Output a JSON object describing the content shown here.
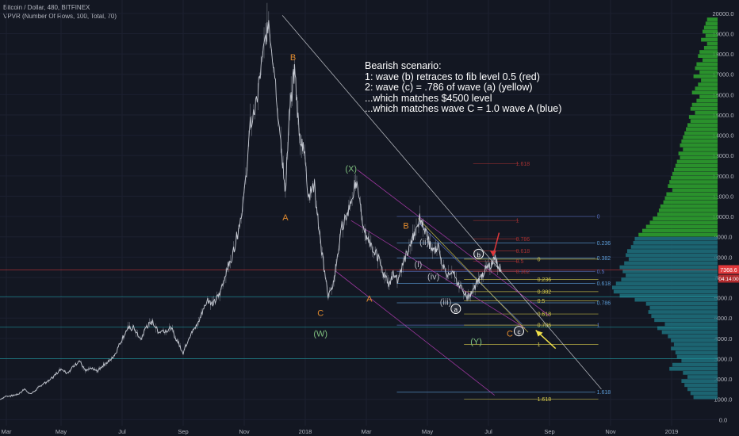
{
  "chart_data": {
    "type": "candlestick",
    "title": "Bitcoin / Dollar, 480, BITFINEX",
    "indicator": "VPVR (Number Of Rows, 100, Total, 70)",
    "ylim": [
      -300,
      20500
    ],
    "y_ticks": [
      "0.0",
      "1000.0",
      "2000.0",
      "3000.0",
      "4000.0",
      "5000.0",
      "6000.0",
      "7000.0",
      "8000.0",
      "9000.0",
      "10000.0",
      "11000.0",
      "12000.0",
      "13000.0",
      "14000.0",
      "15000.0",
      "16000.0",
      "17000.0",
      "18000.0",
      "19000.0",
      "20000.0"
    ],
    "x_ticks": [
      "Mar",
      "May",
      "Jul",
      "Sep",
      "Nov",
      "2018",
      "Mar",
      "May",
      "Jul",
      "Sep",
      "Nov",
      "2019"
    ],
    "price_label": "7368.6",
    "time_label": "04:14:00",
    "note_lines": [
      "Bearish scenario:",
      "1: wave (b) retraces to fib level 0.5 (red)",
      "2: wave (c) = .786 of wave (a) (yellow)",
      "...which matches $4500 level",
      "...which matches wave C = 1.0 wave A (blue)"
    ],
    "price_path": [
      [
        0,
        1000
      ],
      [
        0.2,
        1150
      ],
      [
        0.4,
        1180
      ],
      [
        0.6,
        1250
      ],
      [
        0.8,
        1500
      ],
      [
        1.0,
        1250
      ],
      [
        1.2,
        1500
      ],
      [
        1.4,
        1750
      ],
      [
        1.6,
        1900
      ],
      [
        1.8,
        2200
      ],
      [
        2.0,
        2500
      ],
      [
        2.2,
        2300
      ],
      [
        2.4,
        2600
      ],
      [
        2.6,
        2900
      ],
      [
        2.8,
        2400
      ],
      [
        3.0,
        2500
      ],
      [
        3.2,
        2400
      ],
      [
        3.4,
        2700
      ],
      [
        3.6,
        2900
      ],
      [
        3.8,
        3300
      ],
      [
        4.0,
        4000
      ],
      [
        4.2,
        4500
      ],
      [
        4.4,
        4500
      ],
      [
        4.6,
        3900
      ],
      [
        4.8,
        4600
      ],
      [
        5.0,
        4800
      ],
      [
        5.2,
        4300
      ],
      [
        5.4,
        4400
      ],
      [
        5.6,
        4500
      ],
      [
        5.8,
        3900
      ],
      [
        6.0,
        3300
      ],
      [
        6.2,
        4100
      ],
      [
        6.4,
        4500
      ],
      [
        6.6,
        5200
      ],
      [
        6.8,
        5900
      ],
      [
        7.0,
        5700
      ],
      [
        7.2,
        6200
      ],
      [
        7.4,
        7300
      ],
      [
        7.6,
        8000
      ],
      [
        7.8,
        9300
      ],
      [
        8.0,
        11000
      ],
      [
        8.2,
        14500
      ],
      [
        8.4,
        15500
      ],
      [
        8.6,
        17800
      ],
      [
        8.8,
        19700
      ],
      [
        9.0,
        17000
      ],
      [
        9.2,
        13500
      ],
      [
        9.35,
        11200
      ],
      [
        9.5,
        15500
      ],
      [
        9.65,
        17200
      ],
      [
        9.8,
        14000
      ],
      [
        9.95,
        13500
      ],
      [
        10.1,
        11000
      ],
      [
        10.3,
        11500
      ],
      [
        10.45,
        9300
      ],
      [
        10.6,
        7600
      ],
      [
        10.75,
        6100
      ],
      [
        10.9,
        6500
      ],
      [
        11.05,
        8000
      ],
      [
        11.2,
        9500
      ],
      [
        11.35,
        10000
      ],
      [
        11.5,
        10800
      ],
      [
        11.65,
        11700
      ],
      [
        11.8,
        10500
      ],
      [
        11.95,
        9200
      ],
      [
        12.1,
        8800
      ],
      [
        12.3,
        8200
      ],
      [
        12.45,
        7800
      ],
      [
        12.6,
        7000
      ],
      [
        12.75,
        6700
      ],
      [
        12.9,
        7200
      ],
      [
        13.05,
        6800
      ],
      [
        13.25,
        7900
      ],
      [
        13.45,
        8600
      ],
      [
        13.6,
        9300
      ],
      [
        13.75,
        9900
      ],
      [
        13.9,
        9500
      ],
      [
        14.05,
        8700
      ],
      [
        14.2,
        8300
      ],
      [
        14.35,
        8500
      ],
      [
        14.5,
        7600
      ],
      [
        14.65,
        7200
      ],
      [
        14.8,
        7400
      ],
      [
        15.0,
        6600
      ],
      [
        15.15,
        6500
      ],
      [
        15.3,
        6000
      ],
      [
        15.45,
        6200
      ],
      [
        15.6,
        6700
      ],
      [
        15.75,
        7000
      ],
      [
        15.9,
        7400
      ],
      [
        16.05,
        7500
      ],
      [
        16.2,
        8100
      ],
      [
        16.3,
        7600
      ],
      [
        16.42,
        7368
      ]
    ],
    "levels": [
      {
        "name": "blue 0",
        "value": 10000,
        "label": "0",
        "color": "#5b73c4"
      },
      {
        "name": "blue 0.236",
        "value": 8700,
        "label": "0.236",
        "color": "#5b9bd5"
      },
      {
        "name": "blue 0.382",
        "value": 7950,
        "label": "0.382",
        "color": "#5b9bd5"
      },
      {
        "name": "blue 0.5",
        "value": 7300,
        "label": "0.5",
        "color": "#5b73c4"
      },
      {
        "name": "blue 0.618",
        "value": 6700,
        "label": "0.618",
        "color": "#5b9bd5"
      },
      {
        "name": "blue 0.786",
        "value": 5750,
        "label": "0.786",
        "color": "#5b9bd5"
      },
      {
        "name": "blue 1",
        "value": 4650,
        "label": "1",
        "color": "#5b73c4"
      },
      {
        "name": "blue 1.618",
        "value": 1350,
        "label": "1.618",
        "color": "#5b9bd5"
      },
      {
        "name": "red 1.618",
        "value": 12600,
        "label": "1.618",
        "color": "#a83232"
      },
      {
        "name": "red 1",
        "value": 9800,
        "label": "1",
        "color": "#a83232"
      },
      {
        "name": "red 0.786",
        "value": 8900,
        "label": "0.786",
        "color": "#a83232"
      },
      {
        "name": "red 0.618",
        "value": 8300,
        "label": "0.618",
        "color": "#a83232"
      },
      {
        "name": "red 0.5",
        "value": 7800,
        "label": "0.5",
        "color": "#a83232"
      },
      {
        "name": "red 0.382",
        "value": 7300,
        "label": "0.382",
        "color": "#a83232"
      },
      {
        "name": "yellow 0",
        "value": 7900,
        "label": "0",
        "color": "#d4c84a"
      },
      {
        "name": "yellow 0.236",
        "value": 6900,
        "label": "0.236",
        "color": "#d4c84a"
      },
      {
        "name": "yellow 0.382",
        "value": 6300,
        "label": "0.382",
        "color": "#d4c84a"
      },
      {
        "name": "yellow 0.5",
        "value": 5850,
        "label": "0.5",
        "color": "#d4c84a"
      },
      {
        "name": "yellow 0.618",
        "value": 5200,
        "label": "0.618",
        "color": "#d4c84a"
      },
      {
        "name": "yellow 0.786",
        "value": 4650,
        "label": "0.786",
        "color": "#d4c84a"
      },
      {
        "name": "yellow 1",
        "value": 3700,
        "label": "1",
        "color": "#d4c84a"
      },
      {
        "name": "yellow 1.618",
        "value": 1000,
        "label": "1.618",
        "color": "#d4c84a"
      }
    ],
    "wave_labels": [
      {
        "text": "B",
        "x": 9.6,
        "y": 17700,
        "color": "#e08a2e"
      },
      {
        "text": "A",
        "x": 9.35,
        "y": 9800,
        "color": "#e08a2e"
      },
      {
        "text": "C",
        "x": 10.5,
        "y": 5100,
        "color": "#e08a2e"
      },
      {
        "text": "(W)",
        "x": 10.5,
        "y": 4100,
        "color": "#7fbf7f"
      },
      {
        "text": "(X)",
        "x": 11.5,
        "y": 12200,
        "color": "#7fbf7f"
      },
      {
        "text": "B",
        "x": 13.3,
        "y": 9400,
        "color": "#e08a2e"
      },
      {
        "text": "A",
        "x": 12.1,
        "y": 5800,
        "color": "#e08a2e"
      },
      {
        "text": "(i)",
        "x": 13.7,
        "y": 7500,
        "color": "#b2b5be"
      },
      {
        "text": "(ii)",
        "x": 13.9,
        "y": 8600,
        "color": "#b2b5be"
      },
      {
        "text": "(iii)",
        "x": 14.6,
        "y": 5650,
        "color": "#b2b5be"
      },
      {
        "text": "(iv)",
        "x": 14.2,
        "y": 6900,
        "color": "#b2b5be"
      },
      {
        "text": "(Y)",
        "x": 15.6,
        "y": 3700,
        "color": "#7fbf7f"
      },
      {
        "text": "C",
        "x": 16.7,
        "y": 4100,
        "color": "#e08a2e"
      },
      {
        "text": "b",
        "x": 15.68,
        "y": 8000,
        "color": "#ffffff",
        "circle": true
      },
      {
        "text": "a",
        "x": 14.93,
        "y": 5300,
        "color": "#ffffff",
        "circle": true
      },
      {
        "text": "c",
        "x": 17.0,
        "y": 4200,
        "color": "#ffffff",
        "circle": true
      }
    ],
    "volume_profile": {
      "green_color": "#2e9e2e",
      "blue_color": "#1e6d7a",
      "rows": [
        [
          19600,
          14
        ],
        [
          19400,
          16
        ],
        [
          19200,
          18
        ],
        [
          19000,
          20
        ],
        [
          18800,
          16
        ],
        [
          18600,
          22
        ],
        [
          18400,
          14
        ],
        [
          18200,
          18
        ],
        [
          18000,
          24
        ],
        [
          17800,
          26
        ],
        [
          17600,
          20
        ],
        [
          17400,
          28
        ],
        [
          17200,
          30
        ],
        [
          17000,
          24
        ],
        [
          16800,
          32
        ],
        [
          16600,
          22
        ],
        [
          16400,
          26
        ],
        [
          16200,
          30
        ],
        [
          16000,
          34
        ],
        [
          15800,
          24
        ],
        [
          15600,
          28
        ],
        [
          15400,
          34
        ],
        [
          15200,
          36
        ],
        [
          15000,
          30
        ],
        [
          14800,
          38
        ],
        [
          14600,
          36
        ],
        [
          14400,
          40
        ],
        [
          14200,
          42
        ],
        [
          14000,
          44
        ],
        [
          13800,
          46
        ],
        [
          13600,
          48
        ],
        [
          13400,
          50
        ],
        [
          13200,
          46
        ],
        [
          13000,
          52
        ],
        [
          12800,
          50
        ],
        [
          12600,
          54
        ],
        [
          12400,
          56
        ],
        [
          12200,
          58
        ],
        [
          12000,
          60
        ],
        [
          11800,
          62
        ],
        [
          11600,
          64
        ],
        [
          11400,
          66
        ],
        [
          11200,
          60
        ],
        [
          11000,
          68
        ],
        [
          10800,
          70
        ],
        [
          10600,
          72
        ],
        [
          10400,
          76
        ],
        [
          10200,
          78
        ],
        [
          10000,
          80
        ],
        [
          9800,
          86
        ],
        [
          9600,
          90
        ],
        [
          9400,
          95
        ],
        [
          9200,
          100
        ],
        [
          9000,
          105
        ],
        [
          8800,
          110
        ],
        [
          8600,
          112
        ],
        [
          8400,
          115
        ],
        [
          8200,
          120
        ],
        [
          8000,
          122
        ],
        [
          7800,
          118
        ],
        [
          7600,
          124
        ],
        [
          7400,
          130
        ],
        [
          7200,
          126
        ],
        [
          7000,
          122
        ],
        [
          6800,
          128
        ],
        [
          6600,
          135
        ],
        [
          6400,
          140
        ],
        [
          6200,
          138
        ],
        [
          6000,
          130
        ],
        [
          5800,
          110
        ],
        [
          5600,
          95
        ],
        [
          5400,
          90
        ],
        [
          5200,
          92
        ],
        [
          5000,
          88
        ],
        [
          4800,
          84
        ],
        [
          4600,
          70
        ],
        [
          4400,
          80
        ],
        [
          4200,
          74
        ],
        [
          4000,
          66
        ],
        [
          3800,
          62
        ],
        [
          3600,
          58
        ],
        [
          3400,
          62
        ],
        [
          3200,
          56
        ],
        [
          3000,
          54
        ],
        [
          2800,
          48
        ],
        [
          2600,
          60
        ],
        [
          2400,
          64
        ],
        [
          2200,
          46
        ],
        [
          2000,
          40
        ],
        [
          1800,
          48
        ],
        [
          1600,
          44
        ],
        [
          1400,
          40
        ],
        [
          1200,
          36
        ],
        [
          1000,
          32
        ]
      ]
    }
  }
}
